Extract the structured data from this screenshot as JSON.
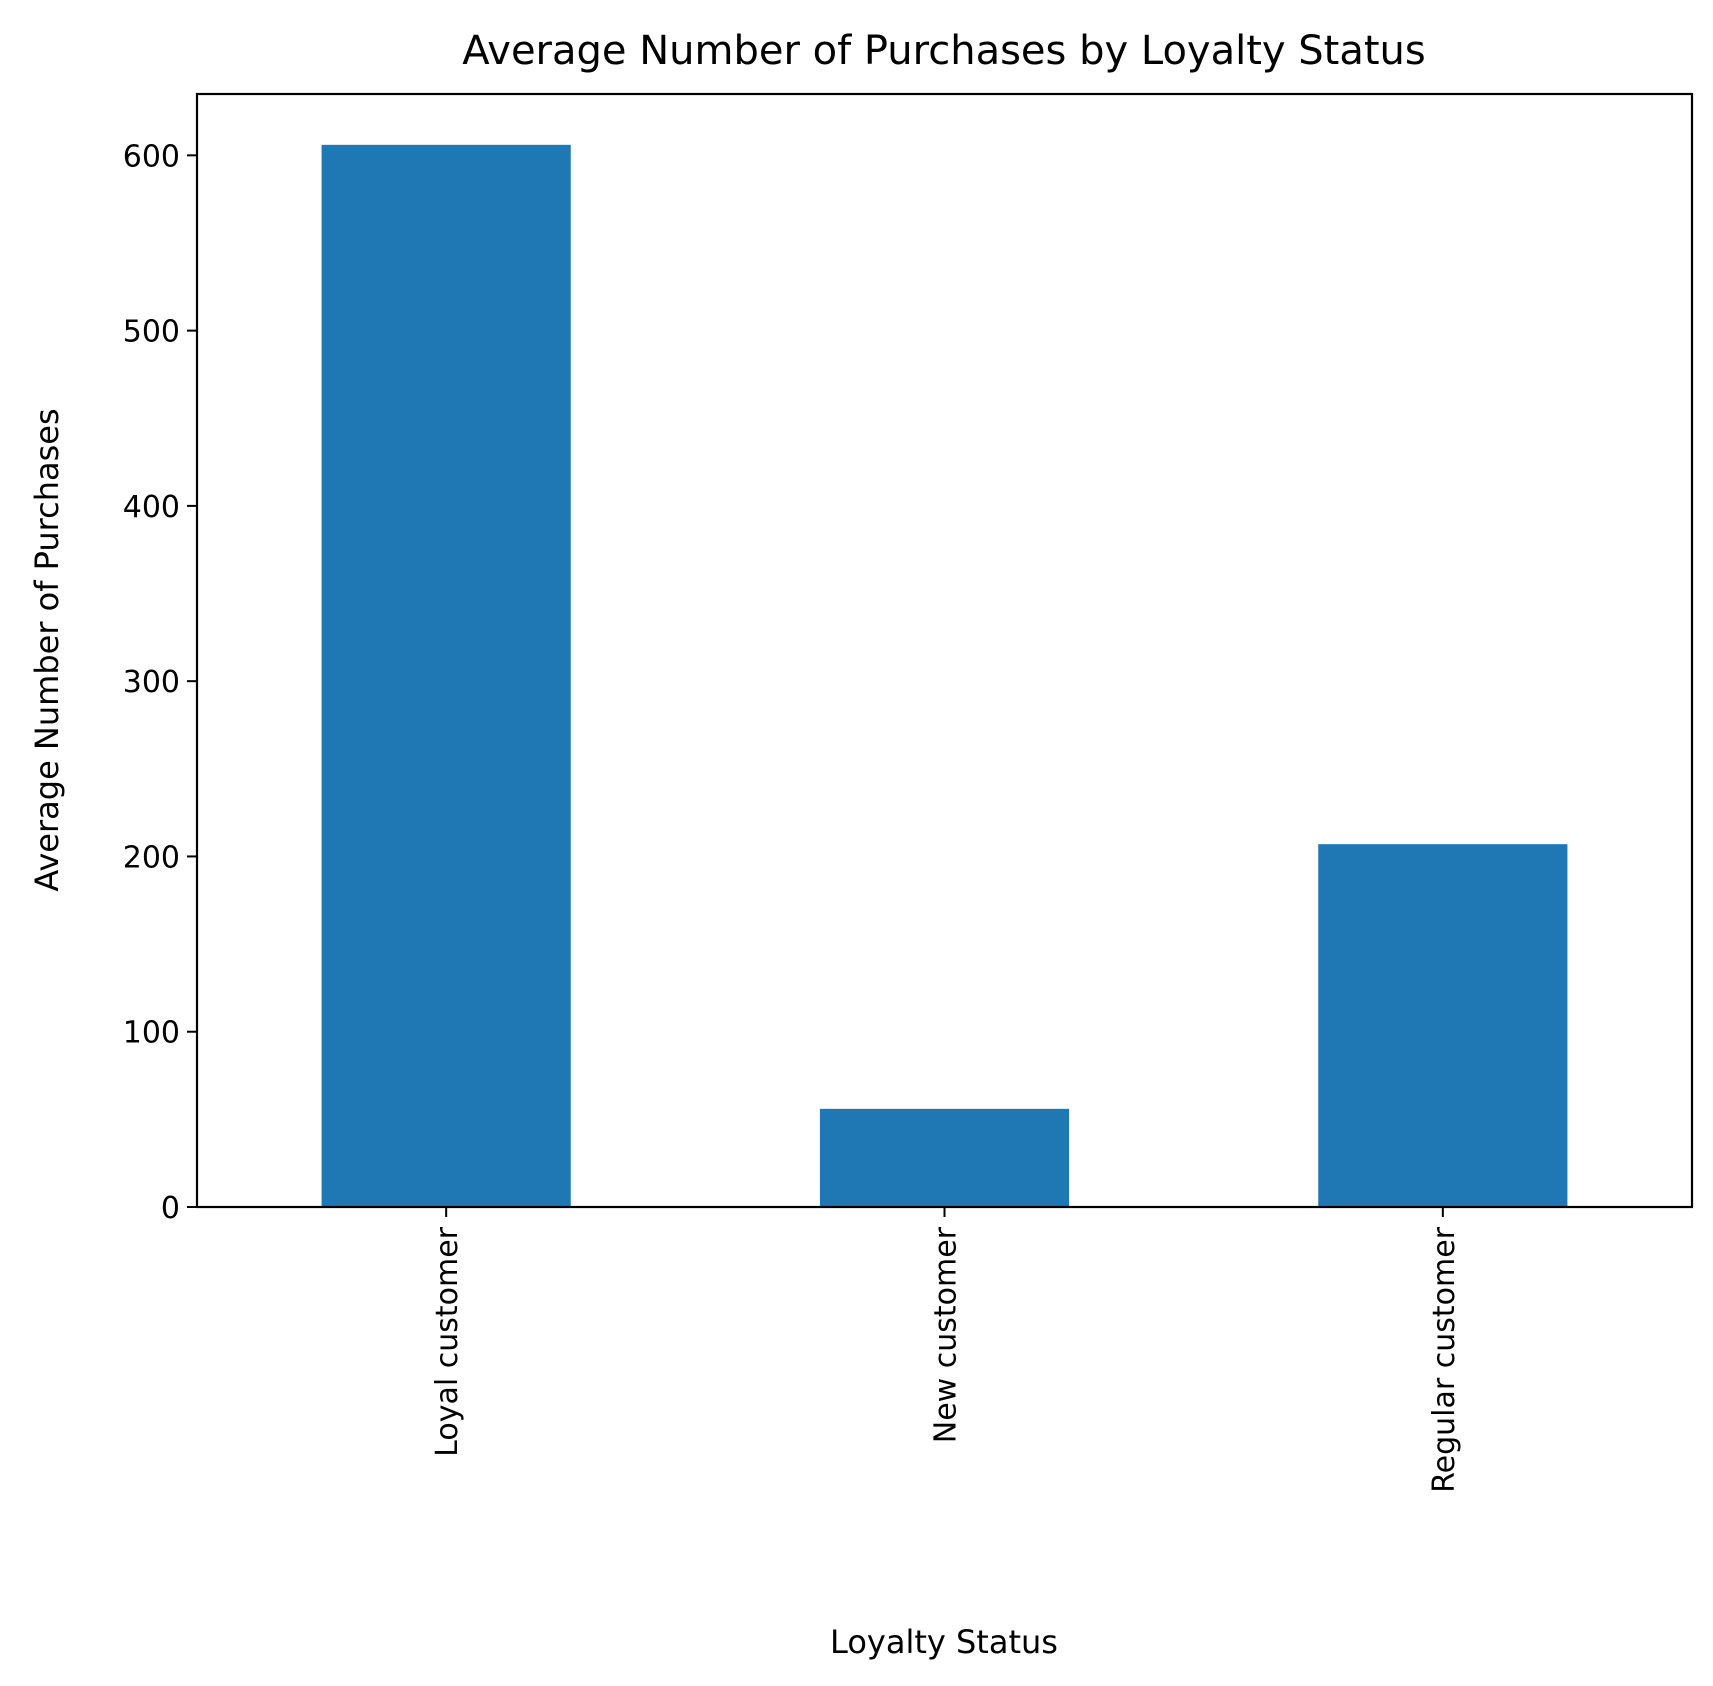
{
  "chart_data": {
    "type": "bar",
    "title": "Average Number of Purchases by Loyalty Status",
    "xlabel": "Loyalty Status",
    "ylabel": "Average Number of Purchases",
    "categories": [
      "Loyal customer",
      "New customer",
      "Regular customer"
    ],
    "values": [
      606,
      56,
      207
    ],
    "ylim": [
      0,
      635
    ],
    "yticks": [
      0,
      100,
      200,
      300,
      400,
      500,
      600
    ],
    "xtick_rotation": "vertical",
    "grid": false,
    "legend": "none",
    "bar_color": "#1f77b4"
  }
}
